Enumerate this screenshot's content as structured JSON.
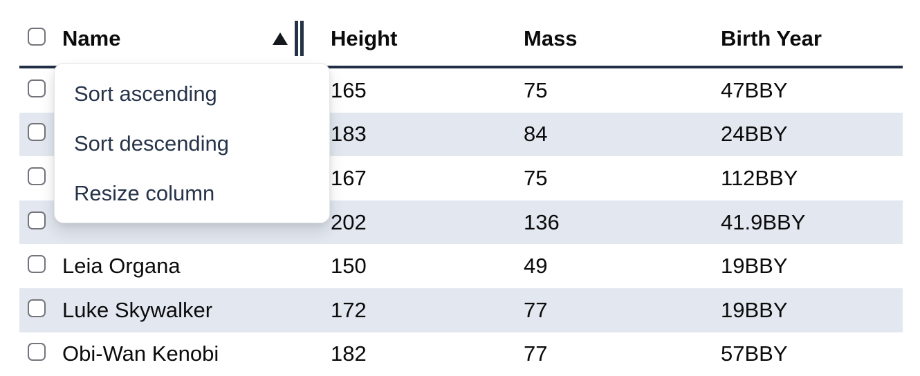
{
  "table": {
    "columns": [
      {
        "label": "Name"
      },
      {
        "label": "Height"
      },
      {
        "label": "Mass"
      },
      {
        "label": "Birth Year"
      }
    ],
    "sort": {
      "column": "Name",
      "direction": "ascending",
      "indicator": "up-triangle"
    },
    "rows": [
      {
        "name": "",
        "height": "165",
        "mass": "75",
        "birth_year": "47BBY"
      },
      {
        "name": "",
        "height": "183",
        "mass": "84",
        "birth_year": "24BBY"
      },
      {
        "name": "",
        "height": "167",
        "mass": "75",
        "birth_year": "112BBY"
      },
      {
        "name": "",
        "height": "202",
        "mass": "136",
        "birth_year": "41.9BBY"
      },
      {
        "name": "Leia Organa",
        "height": "150",
        "mass": "49",
        "birth_year": "19BBY"
      },
      {
        "name": "Luke Skywalker",
        "height": "172",
        "mass": "77",
        "birth_year": "19BBY"
      },
      {
        "name": "Obi-Wan Kenobi",
        "height": "182",
        "mass": "77",
        "birth_year": "57BBY"
      }
    ]
  },
  "context_menu": {
    "items": [
      {
        "label": "Sort ascending"
      },
      {
        "label": "Sort descending"
      },
      {
        "label": "Resize column"
      }
    ]
  },
  "colors": {
    "row_stripe": "#e3e8f0",
    "header_rule": "#222e43",
    "menu_text": "#263349",
    "body_text": "#0b0b0c",
    "checkbox_border": "#74747c"
  }
}
